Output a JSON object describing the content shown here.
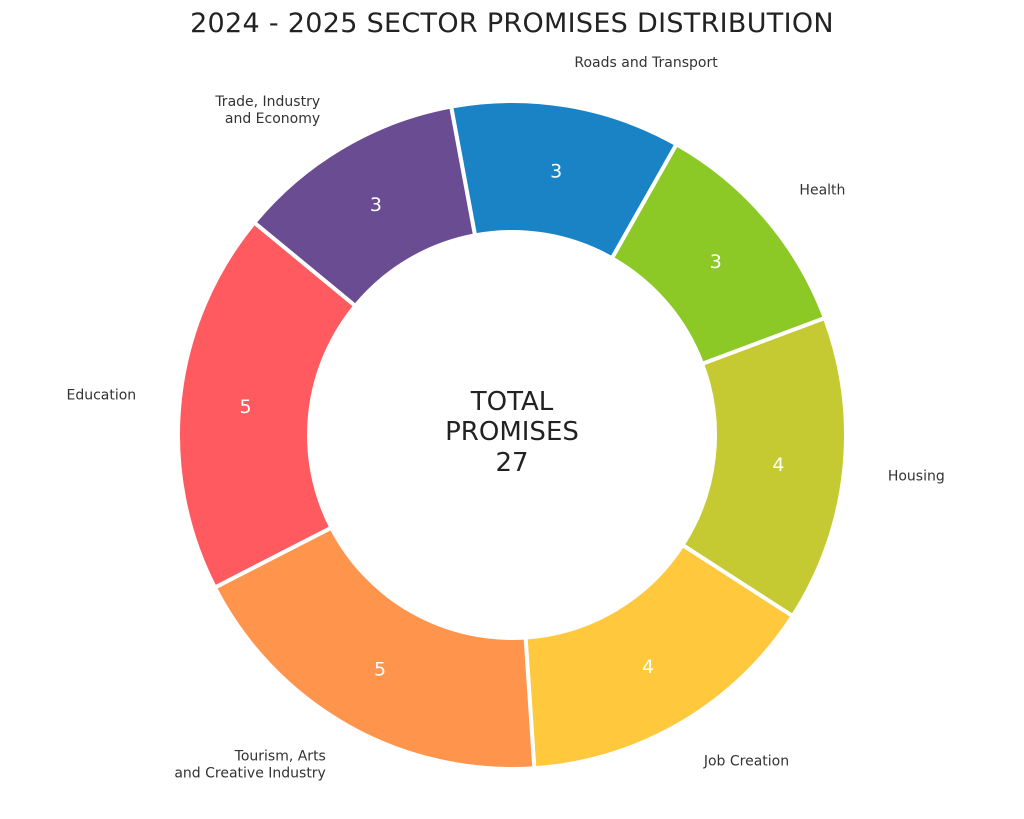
{
  "chart_data": {
    "type": "pie",
    "variant": "donut",
    "title": "2024 - 2025 SECTOR PROMISES DISTRIBUTION",
    "center_text": [
      "TOTAL",
      "PROMISES",
      "27"
    ],
    "legend": "none",
    "slices": [
      {
        "label": [
          "Roads and Transport"
        ],
        "value": 3,
        "color": "#1a83c6"
      },
      {
        "label": [
          "Health"
        ],
        "value": 3,
        "color": "#8cc926"
      },
      {
        "label": [
          "Housing"
        ],
        "value": 4,
        "color": "#c5c932"
      },
      {
        "label": [
          "Job Creation"
        ],
        "value": 4,
        "color": "#ffc83d"
      },
      {
        "label": [
          "Tourism, Arts",
          "and Creative Industry"
        ],
        "value": 5,
        "color": "#ff944d"
      },
      {
        "label": [
          "Education"
        ],
        "value": 5,
        "color": "#ff5a5f"
      },
      {
        "label": [
          "Trade, Industry",
          "and Economy"
        ],
        "value": 3,
        "color": "#6a4c93"
      }
    ]
  }
}
